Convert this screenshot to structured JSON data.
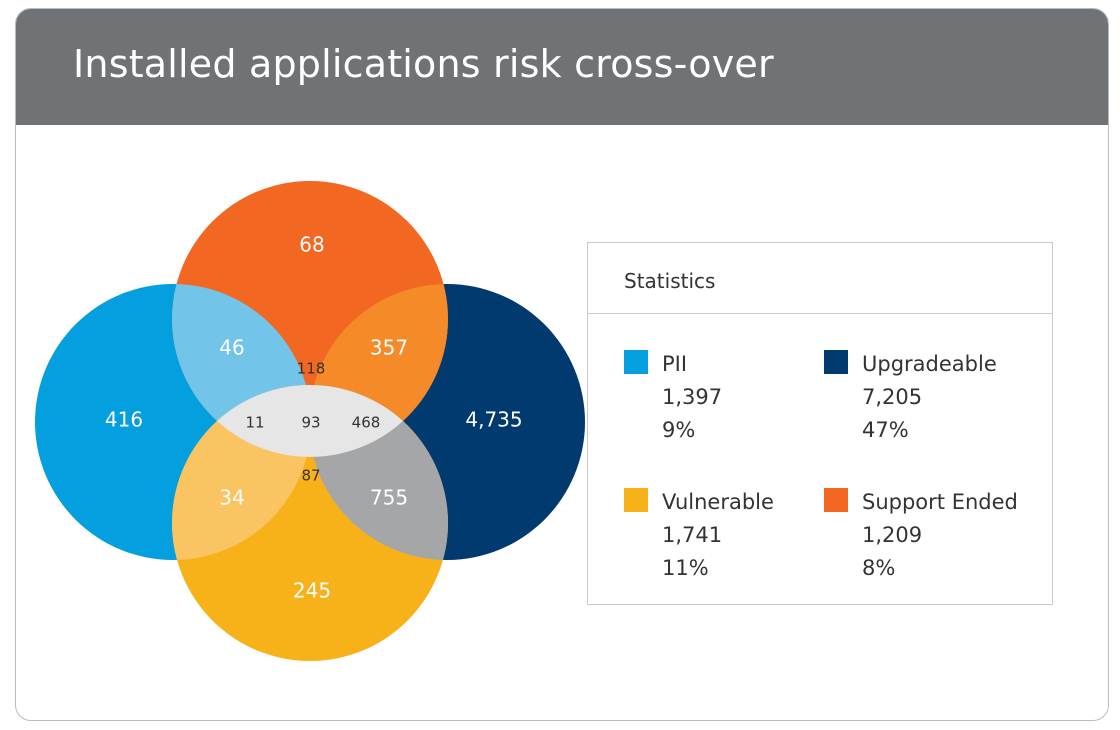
{
  "header": {
    "title": "Installed applications risk cross-over"
  },
  "colors": {
    "pii": "#049fdf",
    "upgradeable": "#003a6e",
    "vulnerable": "#f8b219",
    "support_ended": "#f26822",
    "header_bg": "#707376"
  },
  "venn": {
    "sets": [
      {
        "key": "pii",
        "name": "PII",
        "icon": "pii-circle"
      },
      {
        "key": "upgradeable",
        "name": "Upgradeable",
        "icon": "upgradeable-circle"
      },
      {
        "key": "vulnerable",
        "name": "Vulnerable",
        "icon": "vulnerable-circle"
      },
      {
        "key": "support_ended",
        "name": "Support Ended",
        "icon": "support-ended-circle"
      }
    ],
    "regions": {
      "support_only": "68",
      "pii_only": "416",
      "upgradeable_only": "4,735",
      "vulnerable_only": "245",
      "pii_support": "46",
      "support_upgradeable": "357",
      "pii_vulnerable": "34",
      "vulnerable_upgradeable": "755",
      "top_center": "118",
      "left_center": "11",
      "center": "93",
      "right_center": "468",
      "bottom_center": "87"
    }
  },
  "stats": {
    "title": "Statistics",
    "items": [
      {
        "label": "PII",
        "count": "1,397",
        "percent": "9%"
      },
      {
        "label": "Upgradeable",
        "count": "7,205",
        "percent": "47%"
      },
      {
        "label": "Vulnerable",
        "count": "1,741",
        "percent": "11%"
      },
      {
        "label": "Support Ended",
        "count": "1,209",
        "percent": "8%"
      }
    ]
  }
}
